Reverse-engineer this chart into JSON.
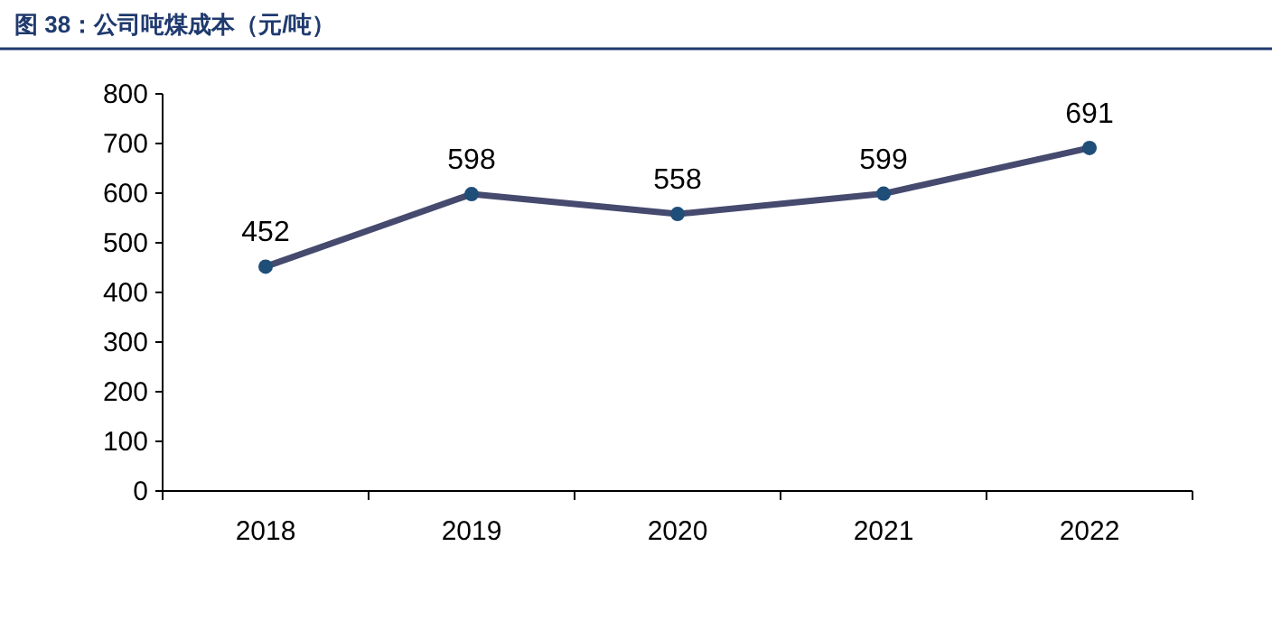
{
  "chart_data": {
    "type": "line",
    "title": "图 38：公司吨煤成本（元/吨）",
    "categories": [
      "2018",
      "2019",
      "2020",
      "2021",
      "2022"
    ],
    "series": [
      {
        "color": "#454a6e",
        "values": [
          452,
          598,
          558,
          599,
          691
        ]
      }
    ],
    "ylim": [
      0,
      800
    ],
    "yticks": [
      0,
      100,
      200,
      300,
      400,
      500,
      600,
      700,
      800
    ],
    "data_labels": true,
    "marker": "circle",
    "line_style": "solid",
    "grid": false
  }
}
